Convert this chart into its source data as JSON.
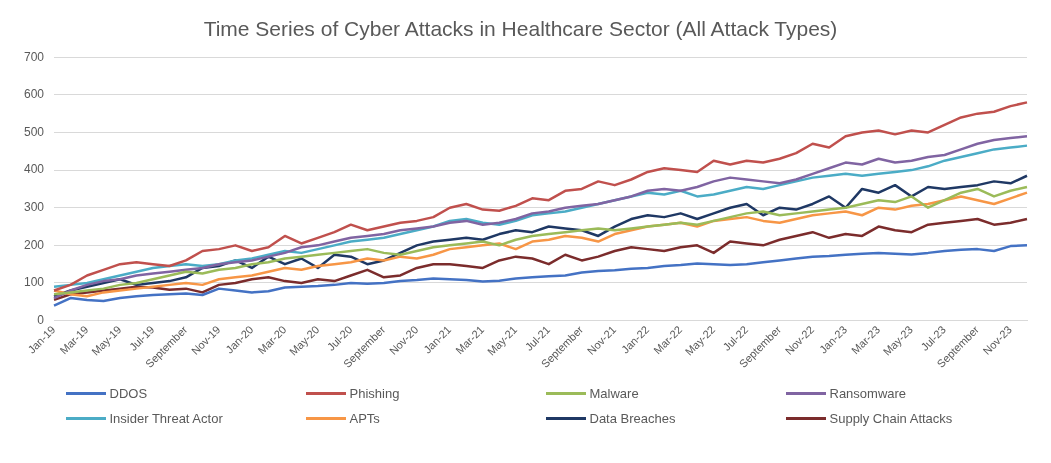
{
  "chart_data": {
    "type": "line",
    "title": "Time Series of Cyber Attacks in Healthcare Sector (All Attack Types)",
    "categories": [
      "Jan-19",
      null,
      "Mar-19",
      null,
      "May-19",
      null,
      "Jul-19",
      null,
      "September",
      null,
      "Nov-19",
      null,
      "Jan-20",
      null,
      "Mar-20",
      null,
      "May-20",
      null,
      "Jul-20",
      null,
      "September",
      null,
      "Nov-20",
      null,
      "Jan-21",
      null,
      "Mar-21",
      null,
      "May-21",
      null,
      "Jul-21",
      null,
      "September",
      null,
      "Nov-21",
      null,
      "Jan-22",
      null,
      "Mar-22",
      null,
      "May-22",
      null,
      "Jul-22",
      null,
      "September",
      null,
      "Nov-22",
      null,
      "Jan-23",
      null,
      "Mar-23",
      null,
      "May-23",
      null,
      "Jul-23",
      null,
      "September",
      null,
      "Nov-23",
      null
    ],
    "series": [
      {
        "name": "DDOS",
        "color": "#4472c4",
        "values": [
          40,
          60,
          55,
          52,
          60,
          65,
          68,
          70,
          72,
          68,
          85,
          80,
          75,
          78,
          88,
          90,
          92,
          95,
          100,
          98,
          100,
          105,
          108,
          112,
          110,
          108,
          104,
          106,
          112,
          115,
          118,
          120,
          128,
          132,
          134,
          138,
          140,
          145,
          148,
          152,
          150,
          148,
          150,
          155,
          160,
          165,
          170,
          172,
          175,
          178,
          180,
          178,
          176,
          180,
          185,
          188,
          190,
          185,
          198,
          200
        ]
      },
      {
        "name": "Phishing",
        "color": "#c0504d",
        "values": [
          80,
          95,
          120,
          135,
          150,
          155,
          150,
          145,
          160,
          185,
          190,
          200,
          185,
          195,
          225,
          205,
          220,
          235,
          255,
          240,
          250,
          260,
          265,
          275,
          300,
          310,
          295,
          292,
          305,
          325,
          320,
          345,
          350,
          370,
          360,
          375,
          395,
          405,
          400,
          395,
          425,
          415,
          425,
          420,
          430,
          445,
          470,
          460,
          490,
          500,
          505,
          495,
          505,
          500,
          520,
          540,
          550,
          555,
          570,
          580
        ]
      },
      {
        "name": "Malware",
        "color": "#9bbb59",
        "values": [
          70,
          75,
          80,
          85,
          95,
          100,
          110,
          120,
          130,
          125,
          135,
          140,
          150,
          155,
          165,
          170,
          175,
          180,
          185,
          190,
          180,
          175,
          185,
          195,
          200,
          205,
          210,
          200,
          215,
          225,
          230,
          235,
          240,
          245,
          240,
          245,
          250,
          255,
          260,
          255,
          265,
          275,
          285,
          290,
          280,
          285,
          290,
          295,
          300,
          310,
          320,
          315,
          330,
          300,
          320,
          340,
          350,
          330,
          345,
          355
        ]
      },
      {
        "name": "Ransomware",
        "color": "#8064a2",
        "values": [
          60,
          80,
          95,
          105,
          110,
          120,
          125,
          130,
          135,
          140,
          150,
          155,
          160,
          170,
          180,
          195,
          200,
          210,
          220,
          225,
          230,
          240,
          245,
          250,
          260,
          265,
          255,
          260,
          270,
          285,
          290,
          300,
          305,
          310,
          320,
          330,
          345,
          350,
          345,
          355,
          370,
          380,
          375,
          370,
          365,
          375,
          390,
          405,
          420,
          415,
          430,
          420,
          425,
          435,
          440,
          455,
          470,
          480,
          485,
          490
        ]
      },
      {
        "name": "Insider Threat Actor",
        "color": "#4bacc6",
        "values": [
          90,
          95,
          100,
          110,
          120,
          130,
          140,
          145,
          150,
          145,
          150,
          160,
          165,
          175,
          185,
          180,
          190,
          200,
          210,
          215,
          220,
          230,
          240,
          250,
          265,
          270,
          260,
          255,
          265,
          280,
          285,
          290,
          300,
          310,
          320,
          330,
          340,
          335,
          345,
          330,
          335,
          345,
          355,
          350,
          360,
          370,
          380,
          385,
          390,
          385,
          390,
          395,
          400,
          410,
          425,
          435,
          445,
          455,
          460,
          465
        ]
      },
      {
        "name": "APTs",
        "color": "#f79646",
        "values": [
          80,
          70,
          65,
          75,
          80,
          85,
          90,
          95,
          100,
          95,
          110,
          115,
          120,
          130,
          140,
          135,
          145,
          150,
          155,
          165,
          160,
          170,
          165,
          175,
          190,
          195,
          200,
          205,
          190,
          210,
          215,
          225,
          220,
          210,
          230,
          240,
          250,
          255,
          260,
          250,
          265,
          270,
          275,
          265,
          260,
          270,
          280,
          285,
          290,
          280,
          300,
          295,
          305,
          310,
          320,
          330,
          320,
          310,
          325,
          340
        ]
      },
      {
        "name": "Data Breaches",
        "color": "#1f3864",
        "values": [
          65,
          80,
          90,
          100,
          110,
          95,
          100,
          105,
          115,
          140,
          145,
          160,
          140,
          170,
          150,
          165,
          140,
          175,
          170,
          150,
          160,
          180,
          200,
          210,
          215,
          220,
          215,
          230,
          240,
          235,
          250,
          245,
          240,
          225,
          250,
          270,
          280,
          275,
          285,
          270,
          285,
          300,
          310,
          280,
          300,
          295,
          310,
          330,
          300,
          350,
          340,
          360,
          330,
          355,
          350,
          355,
          360,
          370,
          365,
          385
        ]
      },
      {
        "name": "Supply Chain Attacks",
        "color": "#7b2c2c",
        "values": [
          55,
          70,
          75,
          80,
          85,
          90,
          88,
          82,
          85,
          75,
          95,
          100,
          110,
          115,
          105,
          100,
          110,
          105,
          120,
          135,
          115,
          120,
          140,
          150,
          150,
          145,
          140,
          160,
          170,
          165,
          150,
          175,
          160,
          170,
          185,
          195,
          190,
          185,
          195,
          200,
          180,
          210,
          205,
          200,
          215,
          225,
          235,
          220,
          230,
          225,
          250,
          240,
          235,
          255,
          260,
          265,
          270,
          255,
          260,
          270
        ]
      }
    ],
    "ylim": [
      0,
      700
    ],
    "yticks": [
      0,
      100,
      200,
      300,
      400,
      500,
      600,
      700
    ],
    "grid": "y",
    "legend": "bottom",
    "marker": "none",
    "line_style": "solid"
  }
}
